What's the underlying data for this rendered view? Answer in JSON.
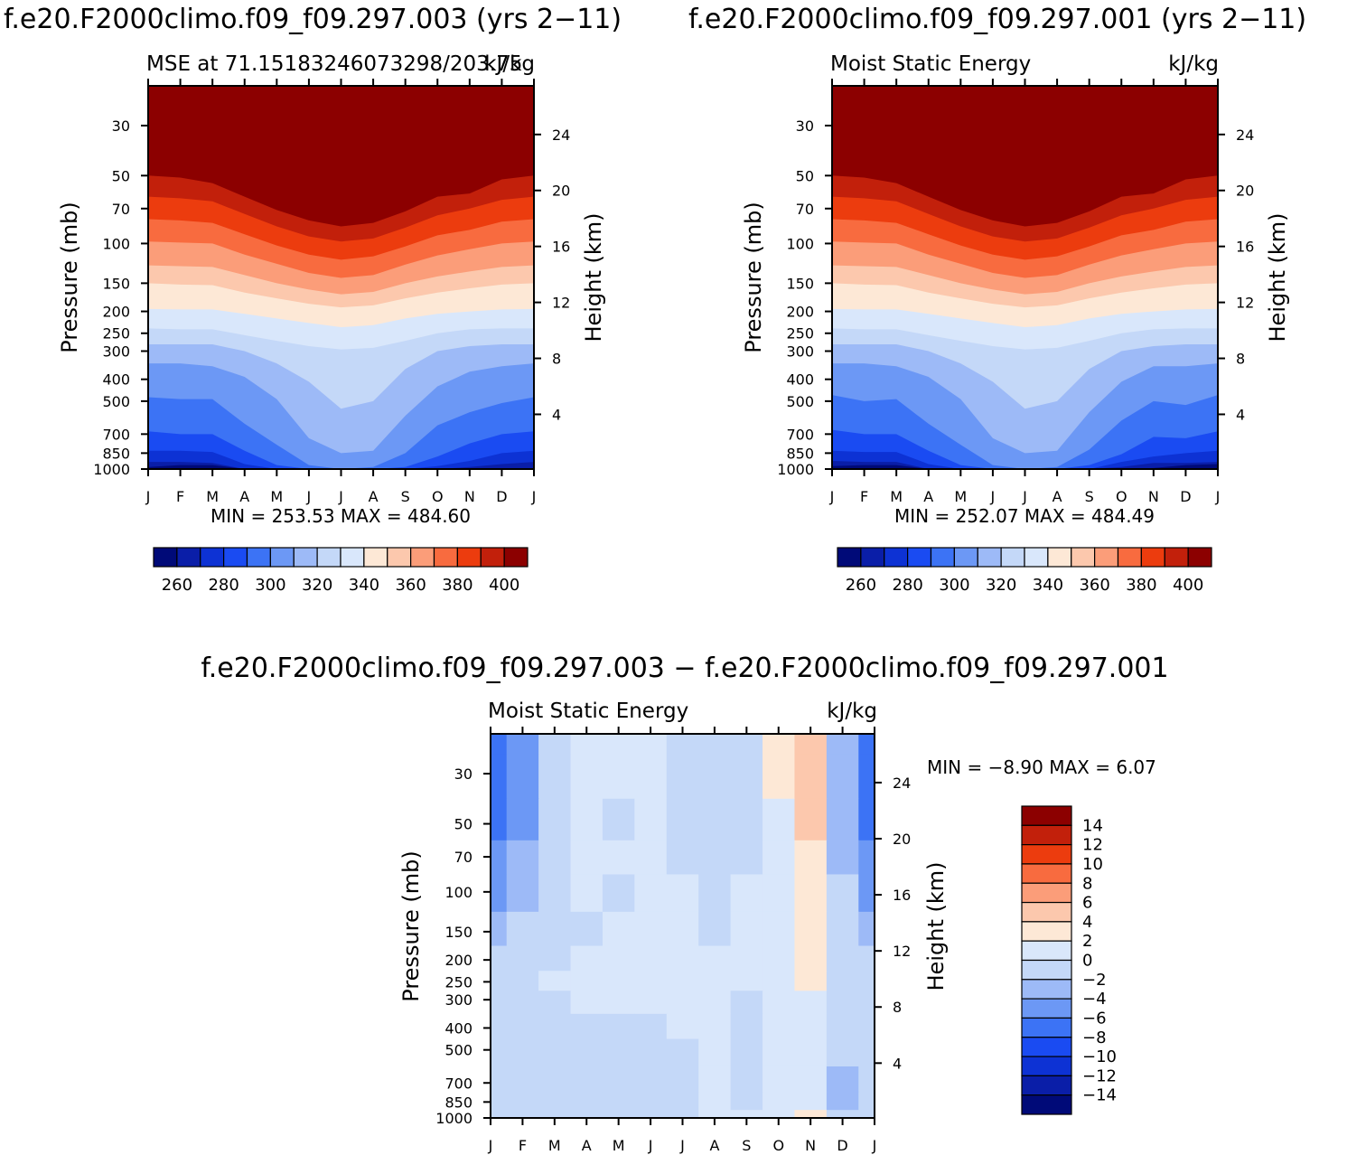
{
  "figure": {
    "left_case_title": "f.e20.F2000climo.f09_f09.297.003 (yrs 2−11)",
    "right_case_title": "f.e20.F2000climo.f09_f09.297.001 (yrs 2−11)",
    "diff_title": "f.e20.F2000climo.f09_f09.297.003 − f.e20.F2000climo.f09_f09.297.001"
  },
  "chart_data": [
    {
      "id": "left",
      "type": "heatmap",
      "title_left": "MSE at 71.15183246073298/203.75",
      "title_right": "kJ/kg",
      "xlabel": "",
      "ylabel": "Pressure (mb)",
      "ylabel_right": "Height (km)",
      "x_ticks": [
        "J",
        "F",
        "M",
        "A",
        "M",
        "J",
        "J",
        "A",
        "S",
        "O",
        "N",
        "D",
        "J"
      ],
      "y_ticks": [
        30,
        50,
        70,
        100,
        150,
        200,
        250,
        300,
        400,
        500,
        700,
        850,
        1000
      ],
      "y_right_ticks": [
        4,
        8,
        12,
        16,
        20,
        24
      ],
      "ylim": [
        1000,
        20
      ],
      "stats": {
        "min": "253.53",
        "max": "484.60"
      },
      "stats_text": "MIN =  253.53  MAX =   484.60",
      "colorbar": {
        "levels": [
          260,
          270,
          280,
          290,
          300,
          310,
          320,
          330,
          340,
          350,
          360,
          370,
          380,
          390,
          400
        ],
        "labels": [
          "260",
          "280",
          "300",
          "320",
          "340",
          "360",
          "380",
          "400"
        ]
      },
      "contour_pressure": [
        {
          "level": 260,
          "p": [
            980,
            960,
            960,
            1000,
            1000,
            1000,
            1000,
            1000,
            1000,
            1000,
            1000,
            1000,
            1000
          ]
        },
        {
          "level": 270,
          "p": [
            930,
            930,
            940,
            1000,
            1000,
            1000,
            1000,
            1000,
            1000,
            1000,
            980,
            950,
            930
          ]
        },
        {
          "level": 280,
          "p": [
            830,
            830,
            840,
            950,
            1000,
            1000,
            1000,
            1000,
            1000,
            970,
            920,
            850,
            830
          ]
        },
        {
          "level": 290,
          "p": [
            680,
            700,
            700,
            830,
            960,
            1000,
            1000,
            1000,
            980,
            880,
            770,
            700,
            680
          ]
        },
        {
          "level": 300,
          "p": [
            480,
            490,
            490,
            630,
            780,
            960,
            1000,
            980,
            850,
            640,
            560,
            510,
            480
          ]
        },
        {
          "level": 310,
          "p": [
            340,
            340,
            350,
            390,
            490,
            730,
            850,
            830,
            580,
            430,
            370,
            350,
            340
          ]
        },
        {
          "level": 320,
          "p": [
            280,
            280,
            280,
            300,
            340,
            410,
            540,
            500,
            360,
            300,
            285,
            280,
            280
          ]
        },
        {
          "level": 330,
          "p": [
            238,
            240,
            240,
            255,
            270,
            285,
            295,
            290,
            270,
            250,
            240,
            238,
            238
          ]
        },
        {
          "level": 340,
          "p": [
            195,
            196,
            196,
            205,
            215,
            225,
            235,
            230,
            215,
            205,
            200,
            196,
            195
          ]
        },
        {
          "level": 350,
          "p": [
            150,
            152,
            153,
            165,
            175,
            185,
            192,
            188,
            175,
            165,
            158,
            152,
            150
          ]
        },
        {
          "level": 360,
          "p": [
            125,
            126,
            127,
            138,
            150,
            160,
            168,
            164,
            150,
            140,
            133,
            127,
            125
          ]
        },
        {
          "level": 370,
          "p": [
            98,
            99,
            100,
            112,
            123,
            135,
            142,
            138,
            124,
            113,
            106,
            100,
            98
          ]
        },
        {
          "level": 380,
          "p": [
            78,
            79,
            81,
            91,
            102,
            112,
            118,
            114,
            103,
            92,
            87,
            80,
            78
          ]
        },
        {
          "level": 390,
          "p": [
            62,
            63,
            65,
            74,
            84,
            93,
            98,
            95,
            85,
            75,
            70,
            64,
            62
          ]
        },
        {
          "level": 400,
          "p": [
            50,
            51,
            54,
            62,
            71,
            79,
            84,
            81,
            72,
            62,
            60,
            52,
            50
          ]
        }
      ]
    },
    {
      "id": "right",
      "type": "heatmap",
      "title_left": "Moist Static Energy",
      "title_right": "kJ/kg",
      "xlabel": "",
      "ylabel": "Pressure (mb)",
      "ylabel_right": "Height (km)",
      "x_ticks": [
        "J",
        "F",
        "M",
        "A",
        "M",
        "J",
        "J",
        "A",
        "S",
        "O",
        "N",
        "D",
        "J"
      ],
      "y_ticks": [
        30,
        50,
        70,
        100,
        150,
        200,
        250,
        300,
        400,
        500,
        700,
        850,
        1000
      ],
      "y_right_ticks": [
        4,
        8,
        12,
        16,
        20,
        24
      ],
      "ylim": [
        1000,
        20
      ],
      "stats": {
        "min": "252.07",
        "max": "484.49"
      },
      "stats_text": "MIN =  252.07  MAX =   484.49",
      "colorbar": {
        "levels": [
          260,
          270,
          280,
          290,
          300,
          310,
          320,
          330,
          340,
          350,
          360,
          370,
          380,
          390,
          400
        ],
        "labels": [
          "260",
          "280",
          "300",
          "320",
          "340",
          "360",
          "380",
          "400"
        ]
      },
      "contour_pressure": [
        {
          "level": 260,
          "p": [
            970,
            960,
            960,
            1000,
            1000,
            1000,
            1000,
            1000,
            1000,
            1000,
            990,
            960,
            950
          ]
        },
        {
          "level": 270,
          "p": [
            920,
            930,
            930,
            1000,
            1000,
            1000,
            1000,
            1000,
            1000,
            980,
            940,
            940,
            930
          ]
        },
        {
          "level": 280,
          "p": [
            830,
            840,
            840,
            950,
            1000,
            1000,
            1000,
            1000,
            1000,
            930,
            880,
            850,
            830
          ]
        },
        {
          "level": 290,
          "p": [
            670,
            700,
            700,
            830,
            960,
            1000,
            1000,
            1000,
            960,
            860,
            720,
            730,
            680
          ]
        },
        {
          "level": 300,
          "p": [
            470,
            500,
            490,
            630,
            780,
            960,
            1000,
            980,
            820,
            610,
            500,
            520,
            470
          ]
        },
        {
          "level": 310,
          "p": [
            340,
            340,
            350,
            390,
            490,
            730,
            850,
            830,
            560,
            410,
            350,
            350,
            340
          ]
        },
        {
          "level": 320,
          "p": [
            280,
            280,
            280,
            300,
            340,
            410,
            540,
            500,
            360,
            300,
            285,
            280,
            280
          ]
        },
        {
          "level": 330,
          "p": [
            238,
            240,
            240,
            255,
            270,
            285,
            295,
            290,
            270,
            250,
            240,
            238,
            238
          ]
        },
        {
          "level": 340,
          "p": [
            195,
            196,
            196,
            205,
            215,
            225,
            235,
            230,
            215,
            205,
            200,
            196,
            195
          ]
        },
        {
          "level": 350,
          "p": [
            150,
            152,
            153,
            165,
            175,
            185,
            192,
            188,
            175,
            165,
            158,
            152,
            150
          ]
        },
        {
          "level": 360,
          "p": [
            125,
            126,
            127,
            138,
            150,
            160,
            168,
            164,
            150,
            140,
            133,
            127,
            125
          ]
        },
        {
          "level": 370,
          "p": [
            98,
            99,
            100,
            112,
            123,
            135,
            142,
            138,
            124,
            113,
            106,
            100,
            98
          ]
        },
        {
          "level": 380,
          "p": [
            78,
            79,
            81,
            91,
            102,
            112,
            118,
            114,
            103,
            92,
            87,
            80,
            78
          ]
        },
        {
          "level": 390,
          "p": [
            62,
            63,
            65,
            74,
            84,
            93,
            98,
            95,
            85,
            75,
            70,
            64,
            62
          ]
        },
        {
          "level": 400,
          "p": [
            50,
            51,
            54,
            62,
            71,
            79,
            84,
            81,
            72,
            62,
            60,
            52,
            50
          ]
        }
      ]
    },
    {
      "id": "diff",
      "type": "heatmap",
      "title_left": "Moist Static Energy",
      "title_right": "kJ/kg",
      "xlabel": "",
      "ylabel": "Pressure (mb)",
      "ylabel_right": "Height (km)",
      "x_ticks": [
        "J",
        "F",
        "M",
        "A",
        "M",
        "J",
        "J",
        "A",
        "S",
        "O",
        "N",
        "D",
        "J"
      ],
      "y_ticks": [
        30,
        50,
        70,
        100,
        150,
        200,
        250,
        300,
        400,
        500,
        700,
        850,
        1000
      ],
      "y_right_ticks": [
        4,
        8,
        12,
        16,
        20,
        24
      ],
      "ylim": [
        1000,
        20
      ],
      "stats": {
        "min": "−8.90",
        "max": "6.07"
      },
      "stats_text": "MIN =    −8.90  MAX =     6.07",
      "colorbar": {
        "levels": [
          -14,
          -12,
          -10,
          -8,
          -6,
          -4,
          -2,
          0,
          2,
          4,
          6,
          8,
          10,
          12,
          14
        ],
        "labels": [
          "14",
          "12",
          "10",
          "8",
          "6",
          "4",
          "2",
          "0",
          "−2",
          "−4",
          "−6",
          "−8",
          "−10",
          "−12",
          "−14"
        ]
      },
      "grid_months": [
        0,
        1,
        2,
        3,
        4,
        5,
        6,
        7,
        8,
        9,
        10,
        11,
        12
      ],
      "grid_pressure": [
        20,
        30,
        50,
        70,
        100,
        150,
        200,
        250,
        300,
        400,
        500,
        700,
        850,
        1000
      ],
      "grid_values": [
        [
          -8,
          -5,
          -1.5,
          1,
          1,
          1,
          -1,
          -1,
          -1,
          2,
          4,
          -3,
          -8
        ],
        [
          -8,
          -5,
          -1.5,
          1,
          1,
          1,
          -1,
          -1,
          -1,
          2,
          4,
          -3,
          -8
        ],
        [
          -7,
          -5,
          -1.5,
          1,
          -0.5,
          1,
          -1,
          -1,
          -1,
          1.5,
          4,
          -3,
          -7
        ],
        [
          -6,
          -4,
          -1.5,
          0.5,
          1,
          1,
          -1,
          -1,
          -1,
          1.5,
          3,
          -3,
          -6
        ],
        [
          -5,
          -3,
          -1.5,
          0.5,
          -0.5,
          1,
          0.5,
          -1,
          1,
          1.5,
          2.5,
          -2,
          -5
        ],
        [
          -3.5,
          -2,
          -1,
          -0.5,
          1,
          1,
          1,
          -0.5,
          1,
          1,
          2.5,
          -1,
          -3.5
        ],
        [
          -1,
          -1,
          -1,
          0.5,
          1,
          1,
          1,
          1,
          1,
          1,
          2.5,
          -1,
          -1
        ],
        [
          -1,
          -1,
          0.5,
          1,
          1,
          1,
          1,
          1,
          1,
          1,
          2.5,
          -1,
          -1
        ],
        [
          -1,
          -1,
          -1,
          1,
          1,
          0.5,
          1,
          1,
          -1,
          1,
          1.5,
          -1,
          -1
        ],
        [
          -1,
          -1,
          -1,
          -1,
          -1,
          -1,
          1,
          1,
          -1,
          1,
          0.5,
          -1,
          -1
        ],
        [
          -1,
          -1,
          -1,
          -1,
          -1,
          -1,
          -1,
          1,
          -1,
          1,
          0.5,
          -1,
          -1
        ],
        [
          -1,
          -1,
          -1,
          -1,
          -1,
          -1,
          -1,
          1,
          -1,
          0.5,
          0.5,
          -3,
          -1
        ],
        [
          -1,
          -1,
          -1,
          -1,
          -1,
          -1,
          -1,
          1,
          -1,
          1,
          0.5,
          -3,
          -1
        ],
        [
          -1,
          -2,
          -1,
          -1,
          -1,
          -1,
          -1,
          1,
          1,
          1,
          3,
          -1,
          -1
        ]
      ]
    }
  ]
}
